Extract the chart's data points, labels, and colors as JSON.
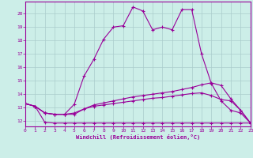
{
  "xlabel": "Windchill (Refroidissement éolien,°C)",
  "bg_color": "#cceee8",
  "line_color": "#990099",
  "grid_color": "#aacccc",
  "x_ticks": [
    0,
    1,
    2,
    3,
    4,
    5,
    6,
    7,
    8,
    9,
    10,
    11,
    12,
    13,
    14,
    15,
    16,
    17,
    18,
    19,
    20,
    21,
    22,
    23
  ],
  "y_ticks": [
    12,
    13,
    14,
    15,
    16,
    17,
    18,
    19,
    20
  ],
  "ylim": [
    11.6,
    20.9
  ],
  "xlim": [
    0,
    23
  ],
  "line1_x": [
    0,
    1,
    2,
    3,
    4,
    5,
    6,
    7,
    8,
    9,
    10,
    11,
    12,
    13,
    14,
    15,
    16,
    17,
    18,
    19,
    20,
    21,
    22,
    23
  ],
  "line1_y": [
    13.3,
    13.1,
    11.9,
    11.85,
    11.85,
    11.85,
    11.85,
    11.85,
    11.85,
    11.85,
    11.85,
    11.85,
    11.85,
    11.85,
    11.85,
    11.85,
    11.85,
    11.85,
    11.85,
    11.85,
    11.85,
    11.85,
    11.85,
    11.85
  ],
  "line2_x": [
    0,
    1,
    2,
    3,
    4,
    5,
    6,
    7,
    8,
    9,
    10,
    11,
    12,
    13,
    14,
    15,
    16,
    17,
    18,
    19,
    20,
    21,
    22,
    23
  ],
  "line2_y": [
    13.3,
    13.1,
    12.6,
    12.5,
    12.5,
    12.5,
    12.9,
    13.1,
    13.2,
    13.3,
    13.4,
    13.5,
    13.6,
    13.7,
    13.75,
    13.85,
    13.95,
    14.05,
    14.1,
    13.9,
    13.6,
    13.5,
    12.8,
    11.85
  ],
  "line3_x": [
    0,
    1,
    2,
    3,
    4,
    5,
    6,
    7,
    8,
    9,
    10,
    11,
    12,
    13,
    14,
    15,
    16,
    17,
    18,
    19,
    20,
    21,
    22,
    23
  ],
  "line3_y": [
    13.3,
    13.1,
    12.6,
    12.5,
    12.5,
    12.6,
    12.9,
    13.2,
    13.35,
    13.5,
    13.65,
    13.8,
    13.9,
    14.0,
    14.1,
    14.2,
    14.35,
    14.5,
    14.7,
    14.85,
    14.65,
    13.65,
    12.8,
    11.85
  ],
  "line4_x": [
    0,
    1,
    2,
    3,
    4,
    5,
    6,
    7,
    8,
    9,
    10,
    11,
    12,
    13,
    14,
    15,
    16,
    17,
    18,
    19,
    20,
    21,
    22,
    23
  ],
  "line4_y": [
    13.3,
    13.1,
    12.6,
    12.5,
    12.5,
    13.25,
    15.35,
    16.6,
    18.1,
    19.0,
    19.1,
    20.5,
    20.2,
    18.8,
    19.0,
    18.8,
    20.3,
    20.3,
    17.0,
    14.8,
    13.5,
    12.8,
    12.6,
    11.85
  ]
}
